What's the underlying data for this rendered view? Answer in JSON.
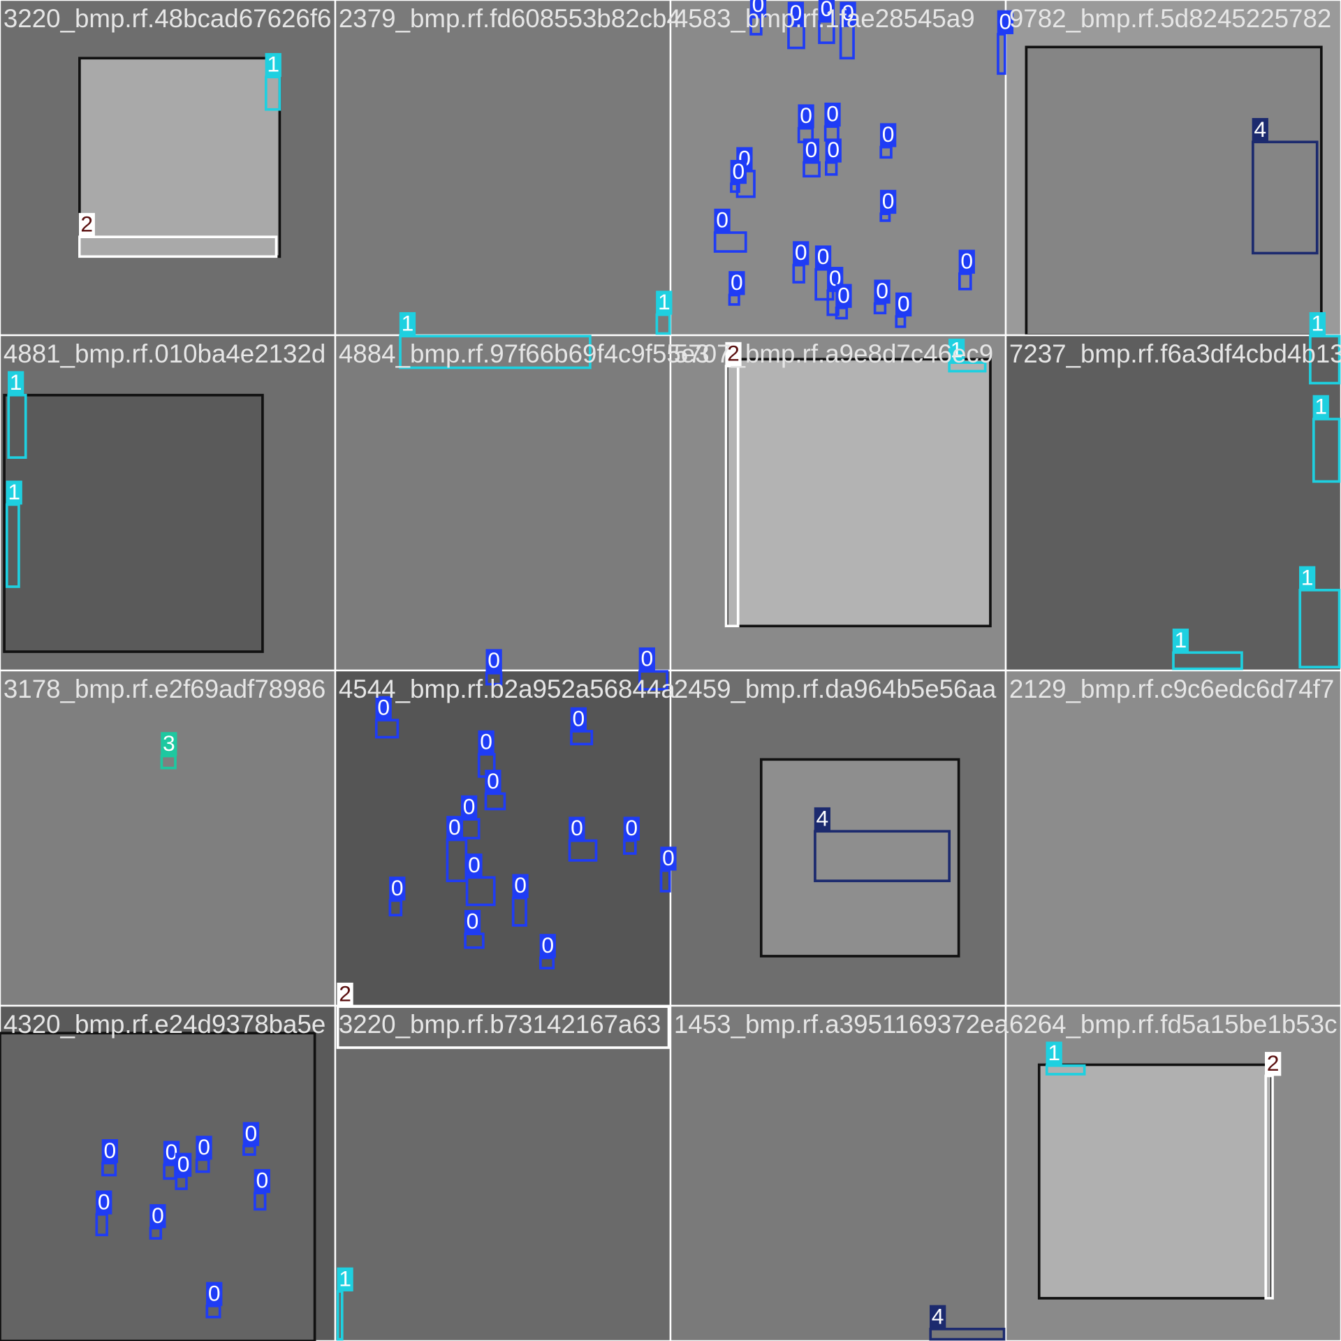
{
  "tiles": [
    {
      "filename": "3220_bmp.rf.48bcad67626f6",
      "boxes": [
        "1",
        "2"
      ]
    },
    {
      "filename": "2379_bmp.rf.fd608553b82cb4",
      "boxes": [
        "1"
      ]
    },
    {
      "filename": "4583_bmp.rf.1fae28545a9",
      "boxes": [
        "0",
        "0",
        "0",
        "0",
        "0",
        "0",
        "0",
        "0",
        "0",
        "0",
        "0",
        "0",
        "0",
        "0",
        "0",
        "0",
        "0",
        "0",
        "0",
        "0",
        "0",
        "0"
      ]
    },
    {
      "filename": "9782_bmp.rf.5d8245225782",
      "boxes": [
        "4"
      ]
    },
    {
      "filename": "4881_bmp.rf.010ba4e2132d",
      "boxes": [
        "1",
        "1"
      ]
    },
    {
      "filename": "4884_bmp.rf.97f66b69f4c9f55e3",
      "boxes": [
        "1",
        "0",
        "0"
      ]
    },
    {
      "filename": "5707_bmp.rf.a9e8d7c46ec9",
      "boxes": [
        "2",
        "1"
      ]
    },
    {
      "filename": "7237_bmp.rf.f6a3df4cbd4b13",
      "boxes": [
        "1",
        "1",
        "1",
        "1"
      ]
    },
    {
      "filename": "3178_bmp.rf.e2f69adf78986",
      "boxes": [
        "3"
      ]
    },
    {
      "filename": "4544_bmp.rf.b2a952a56844a",
      "boxes": [
        "0",
        "0",
        "0",
        "0",
        "0",
        "0",
        "0",
        "0",
        "0",
        "0",
        "0",
        "0",
        "0",
        "0"
      ]
    },
    {
      "filename": "2459_bmp.rf.da964b5e56aa",
      "boxes": [
        "4"
      ]
    },
    {
      "filename": "2129_bmp.rf.c9c6edc6d74f7",
      "boxes": []
    },
    {
      "filename": "4320_bmp.rf.e24d9378ba5e",
      "boxes": [
        "0",
        "0",
        "0",
        "0",
        "0",
        "0",
        "0",
        "0",
        "0"
      ]
    },
    {
      "filename": "3220_bmp.rf.b73142167a63",
      "boxes": [
        "2",
        "1"
      ]
    },
    {
      "filename": "1453_bmp.rf.a3951169372ea",
      "boxes": [
        "4"
      ]
    },
    {
      "filename": "6264_bmp.rf.fd5a15be1b53c",
      "boxes": [
        "1",
        "2"
      ]
    }
  ]
}
